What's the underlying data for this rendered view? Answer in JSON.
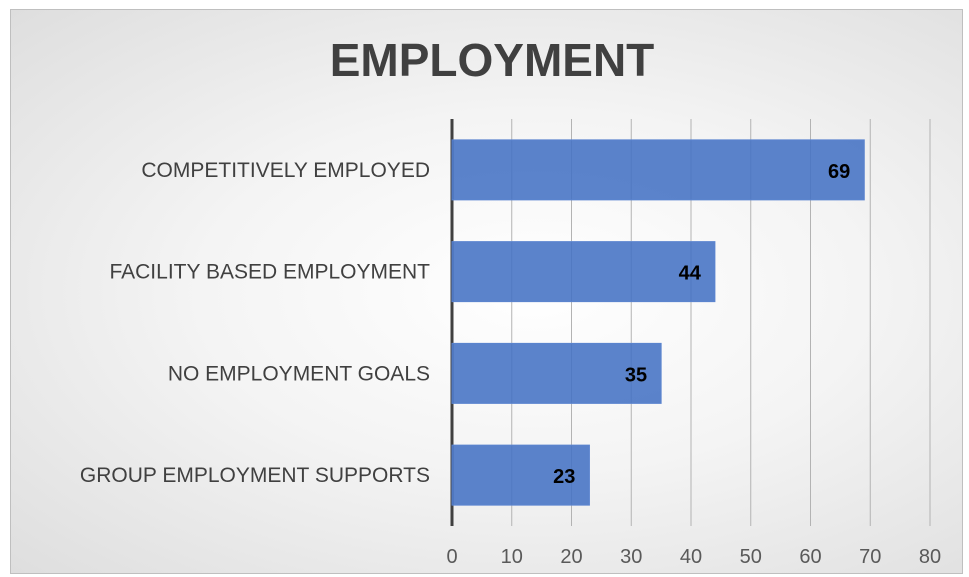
{
  "chart_data": {
    "type": "bar",
    "orientation": "horizontal",
    "title": "EMPLOYMENT",
    "categories": [
      "COMPETITIVELY EMPLOYED",
      "FACILITY BASED EMPLOYMENT",
      "NO EMPLOYMENT GOALS",
      "GROUP EMPLOYMENT SUPPORTS"
    ],
    "values": [
      69,
      44,
      35,
      23
    ],
    "data_labels": [
      "69",
      "44",
      "35",
      "23"
    ],
    "xlim": [
      0,
      80
    ],
    "x_ticks": [
      "0",
      "10",
      "20",
      "30",
      "40",
      "50",
      "60",
      "70",
      "80"
    ],
    "grid": true,
    "legend": false,
    "bar_color": "#4472c4"
  }
}
